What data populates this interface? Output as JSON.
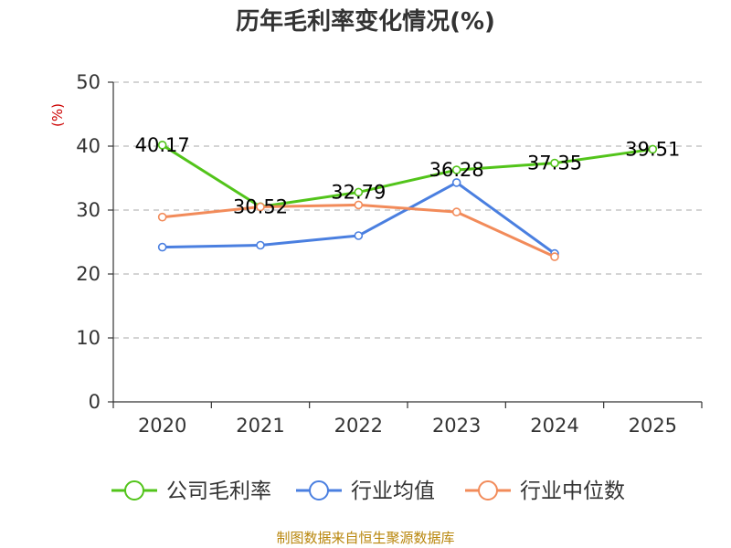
{
  "chart_data": {
    "type": "line",
    "title": "历年毛利率变化情况(%)",
    "unit_label": "(%)",
    "categories": [
      "2020",
      "2021",
      "2022",
      "2023",
      "2024",
      "2025"
    ],
    "ylim": [
      0,
      50
    ],
    "yticks": [
      "0",
      "10",
      "20",
      "30",
      "40",
      "50"
    ],
    "grid": true,
    "legend_position": "bottom",
    "series": [
      {
        "name": "公司毛利率",
        "color": "#52c41a",
        "values": [
          40.17,
          30.52,
          32.79,
          36.28,
          37.35,
          39.51
        ],
        "labels": [
          "40.17",
          "30.52",
          "32.79",
          "36.28",
          "37.35",
          "39.51"
        ]
      },
      {
        "name": "行业均值",
        "color": "#4a7fe0",
        "values": [
          24.2,
          24.5,
          26.0,
          34.3,
          23.2,
          null
        ]
      },
      {
        "name": "行业中位数",
        "color": "#f28b5a",
        "values": [
          28.9,
          30.5,
          30.8,
          29.7,
          22.7,
          null
        ]
      }
    ],
    "source": "制图数据来自恒生聚源数据库"
  }
}
